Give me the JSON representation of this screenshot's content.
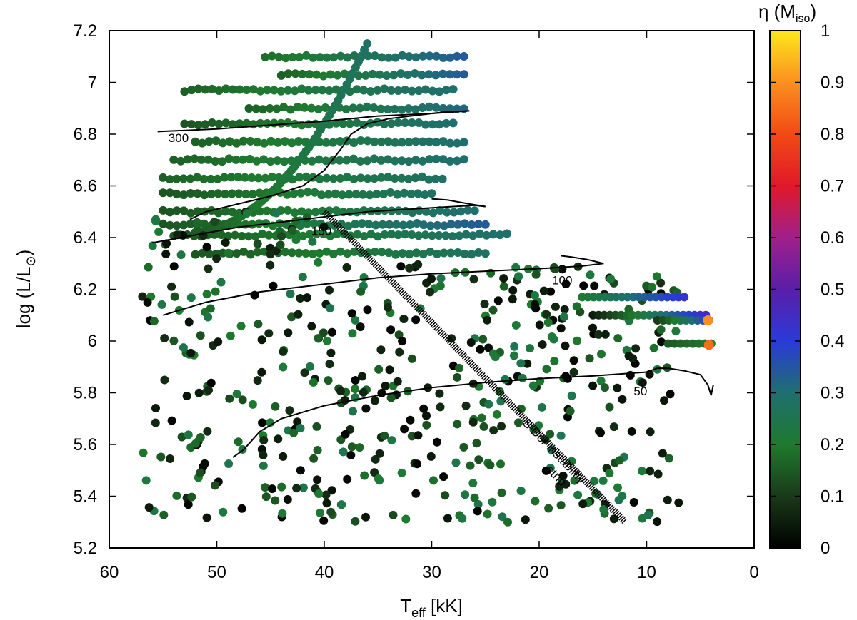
{
  "chart_data": {
    "type": "scatter",
    "xlabel": {
      "main": "T",
      "sub": "eff",
      "rest": " [kK]"
    },
    "ylabel": {
      "main": "log (L/L",
      "sub": "⊙",
      "rest": ")"
    },
    "colorbar_label": {
      "main": "η (M",
      "sub": "iso",
      "rest": ")"
    },
    "xlim": [
      60,
      0
    ],
    "ylim": [
      5.2,
      7.2
    ],
    "x_ticks": [
      60,
      50,
      40,
      30,
      20,
      10,
      0
    ],
    "y_ticks": [
      "5.2",
      "5.4",
      "5.6",
      "5.8",
      "6",
      "6.2",
      "6.4",
      "6.6",
      "6.8",
      "7",
      "7.2"
    ],
    "colorbar": {
      "range": [
        0,
        1
      ],
      "ticks": [
        "0",
        "0.1",
        "0.2",
        "0.3",
        "0.4",
        "0.5",
        "0.6",
        "0.7",
        "0.8",
        "0.9",
        "1"
      ],
      "stops": [
        {
          "v": 0.0,
          "color": "#000000"
        },
        {
          "v": 0.1,
          "color": "#1a3a1a"
        },
        {
          "v": 0.2,
          "color": "#1e7a2e"
        },
        {
          "v": 0.3,
          "color": "#1f6f6f"
        },
        {
          "v": 0.4,
          "color": "#2a3ad8"
        },
        {
          "v": 0.5,
          "color": "#5a1ea8"
        },
        {
          "v": 0.6,
          "color": "#a0208a"
        },
        {
          "v": 0.7,
          "color": "#e0182a"
        },
        {
          "v": 0.8,
          "color": "#f24a14"
        },
        {
          "v": 0.9,
          "color": "#fb9020"
        },
        {
          "v": 1.0,
          "color": "#fce81a"
        }
      ]
    },
    "track_labels": [
      {
        "text": "300",
        "x": 54.5,
        "y": 6.77
      },
      {
        "text": "150",
        "x": 41.2,
        "y": 6.41
      },
      {
        "text": "100",
        "x": 18.8,
        "y": 6.22
      },
      {
        "text": "50",
        "x": 11.2,
        "y": 5.79
      }
    ],
    "strip": {
      "label_line1": "S Dor instability",
      "label_line2": "strip",
      "x1": 40,
      "y1": 6.5,
      "x2": 12,
      "y2": 5.3
    },
    "tracks": [
      {
        "name": "300",
        "points": [
          [
            55.5,
            6.81
          ],
          [
            50,
            6.82
          ],
          [
            45,
            6.835
          ],
          [
            40,
            6.85
          ],
          [
            35,
            6.87
          ],
          [
            30,
            6.88
          ],
          [
            26.5,
            6.89
          ]
        ]
      },
      {
        "name": "300-loop",
        "points": [
          [
            26.5,
            6.89
          ],
          [
            29,
            6.885
          ],
          [
            32,
            6.87
          ],
          [
            34,
            6.86
          ],
          [
            36,
            6.84
          ],
          [
            37.5,
            6.8
          ],
          [
            38.5,
            6.74
          ],
          [
            40,
            6.66
          ],
          [
            42,
            6.6
          ],
          [
            45,
            6.56
          ],
          [
            48,
            6.53
          ],
          [
            51,
            6.5
          ],
          [
            52.5,
            6.47
          ]
        ]
      },
      {
        "name": "150",
        "points": [
          [
            56,
            6.38
          ],
          [
            52,
            6.41
          ],
          [
            48,
            6.44
          ],
          [
            44,
            6.46
          ],
          [
            40,
            6.48
          ],
          [
            36,
            6.5
          ],
          [
            32,
            6.51
          ],
          [
            28,
            6.52
          ],
          [
            26,
            6.525
          ],
          [
            25,
            6.52
          ]
        ]
      },
      {
        "name": "150-hook",
        "points": [
          [
            25,
            6.52
          ],
          [
            26.5,
            6.53
          ],
          [
            28.5,
            6.545
          ],
          [
            30,
            6.55
          ]
        ]
      },
      {
        "name": "100",
        "points": [
          [
            55,
            6.1
          ],
          [
            51,
            6.15
          ],
          [
            46,
            6.19
          ],
          [
            40,
            6.22
          ],
          [
            35,
            6.245
          ],
          [
            30,
            6.26
          ],
          [
            25,
            6.27
          ],
          [
            20,
            6.28
          ],
          [
            16,
            6.29
          ],
          [
            14,
            6.3
          ]
        ]
      },
      {
        "name": "100-hook",
        "points": [
          [
            14,
            6.3
          ],
          [
            15.5,
            6.315
          ],
          [
            17,
            6.325
          ],
          [
            18,
            6.33
          ]
        ]
      },
      {
        "name": "50",
        "points": [
          [
            48.5,
            5.55
          ],
          [
            47.5,
            5.58
          ],
          [
            46,
            5.65
          ],
          [
            44,
            5.7
          ],
          [
            40,
            5.75
          ],
          [
            35,
            5.79
          ],
          [
            30,
            5.82
          ],
          [
            25,
            5.84
          ],
          [
            20,
            5.855
          ],
          [
            15,
            5.865
          ],
          [
            10,
            5.88
          ],
          [
            9,
            5.895
          ]
        ]
      },
      {
        "name": "50-tail",
        "points": [
          [
            9,
            5.895
          ],
          [
            8,
            5.895
          ],
          [
            6.5,
            5.885
          ],
          [
            5,
            5.87
          ],
          [
            4.3,
            5.83
          ],
          [
            4,
            5.79
          ],
          [
            3.8,
            5.83
          ]
        ]
      }
    ],
    "series": [
      {
        "name": "bands",
        "comment_free": true,
        "bands": [
          {
            "y": 7.1,
            "x_from": 45.5,
            "x_to": 27,
            "eta_from": 0.18,
            "eta_to": 0.34
          },
          {
            "y": 7.03,
            "x_from": 44,
            "x_to": 27,
            "eta_from": 0.16,
            "eta_to": 0.34
          },
          {
            "y": 6.97,
            "x_from": 53,
            "x_to": 28,
            "eta_from": 0.16,
            "eta_to": 0.3
          },
          {
            "y": 6.9,
            "x_from": 47,
            "x_to": 27,
            "eta_from": 0.16,
            "eta_to": 0.32
          },
          {
            "y": 6.84,
            "x_from": 53,
            "x_to": 28,
            "eta_from": 0.14,
            "eta_to": 0.3
          },
          {
            "y": 6.77,
            "x_from": 52,
            "x_to": 27,
            "eta_from": 0.16,
            "eta_to": 0.3
          },
          {
            "y": 6.7,
            "x_from": 54,
            "x_to": 27,
            "eta_from": 0.16,
            "eta_to": 0.3
          },
          {
            "y": 6.63,
            "x_from": 55,
            "x_to": 29,
            "eta_from": 0.16,
            "eta_to": 0.28
          },
          {
            "y": 6.57,
            "x_from": 55,
            "x_to": 30,
            "eta_from": 0.14,
            "eta_to": 0.28
          },
          {
            "y": 6.5,
            "x_from": 55,
            "x_to": 26,
            "eta_from": 0.14,
            "eta_to": 0.3
          },
          {
            "y": 6.45,
            "x_from": 55,
            "x_to": 25,
            "eta_from": 0.14,
            "eta_to": 0.34
          },
          {
            "y": 6.41,
            "x_from": 54,
            "x_to": 23,
            "eta_from": 0.14,
            "eta_to": 0.3
          },
          {
            "y": 6.34,
            "x_from": 52,
            "x_to": 25,
            "eta_from": 0.14,
            "eta_to": 0.28
          }
        ]
      }
    ]
  }
}
